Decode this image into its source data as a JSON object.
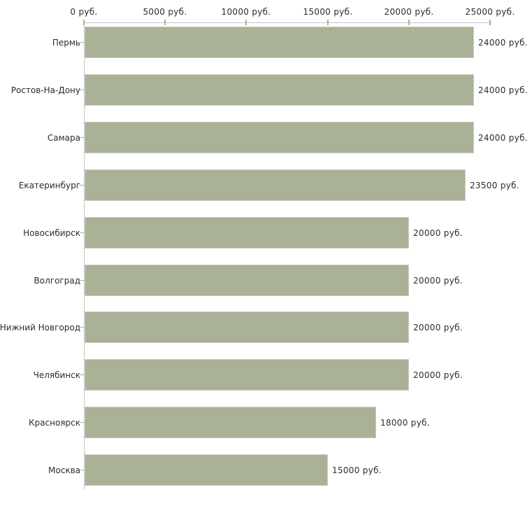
{
  "chart_data": {
    "type": "bar",
    "orientation": "horizontal",
    "title": "",
    "categories": [
      "Пермь",
      "Ростов-На-Дону",
      "Самара",
      "Екатеринбург",
      "Новосибирск",
      "Волгоград",
      "Нижний Новгород",
      "Челябинск",
      "Красноярск",
      "Москва"
    ],
    "values": [
      24000,
      24000,
      24000,
      23500,
      20000,
      20000,
      20000,
      20000,
      18000,
      15000
    ],
    "value_labels": [
      "24000 руб.",
      "24000 руб.",
      "24000 руб.",
      "23500 руб.",
      "20000 руб.",
      "20000 руб.",
      "20000 руб.",
      "20000 руб.",
      "18000 руб.",
      "15000 руб."
    ],
    "x_axis": {
      "position": "top",
      "min": 0,
      "max": 25000,
      "unit": "руб.",
      "ticks": [
        0,
        5000,
        10000,
        15000,
        20000,
        25000
      ],
      "tick_labels": [
        "0 руб.",
        "5000 руб.",
        "10000 руб.",
        "15000 руб.",
        "20000 руб.",
        "25000 руб."
      ]
    },
    "legend": "none",
    "grid": "off"
  },
  "colors": {
    "background": "#ffffff",
    "bar_fill": "#a9b196",
    "bar_border": "#cbcfc0",
    "axis_line": "#c5c5c5",
    "tick_mark": "#b1b183",
    "label_text": "#2b2b2b"
  }
}
